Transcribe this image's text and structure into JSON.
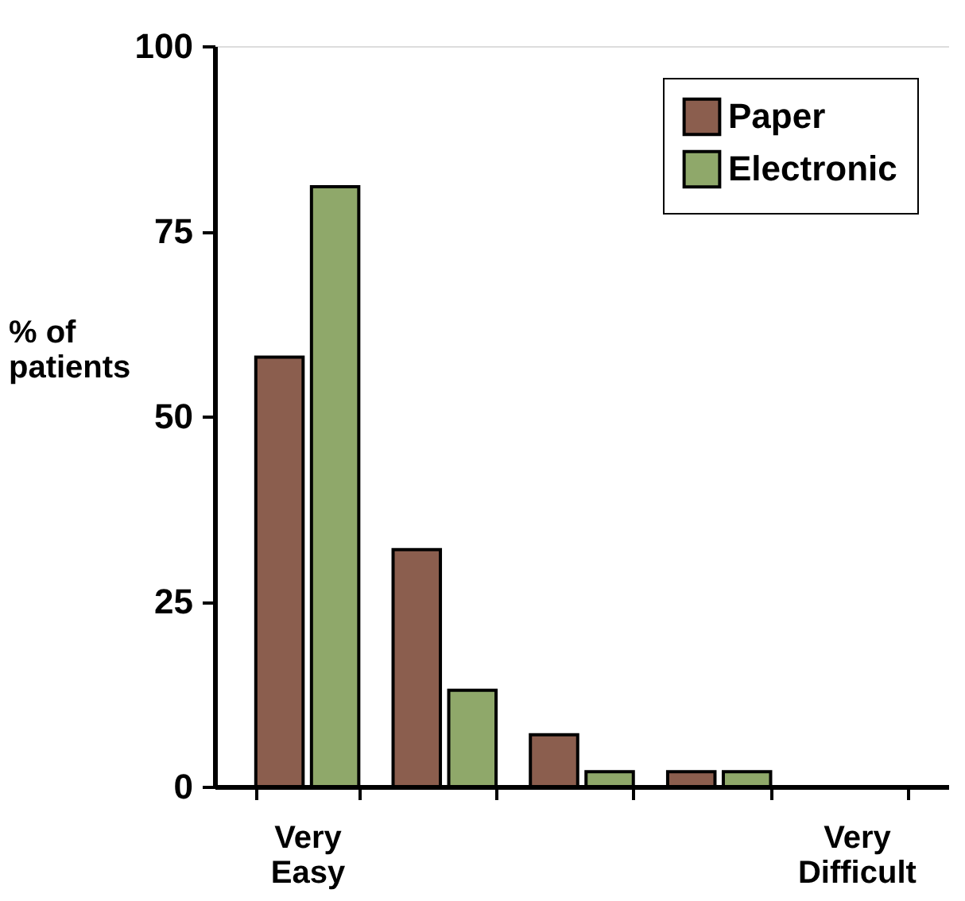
{
  "chart_data": {
    "type": "bar",
    "ylabel": "% of patients",
    "categories": [
      "Very Easy",
      null,
      null,
      null,
      "Very Difficult"
    ],
    "series": [
      {
        "name": "Paper",
        "color": "#8b5e4e",
        "values": [
          58,
          32,
          7,
          2,
          0
        ]
      },
      {
        "name": "Electronic",
        "color": "#8fa86a",
        "values": [
          81,
          13,
          2,
          2,
          0
        ]
      }
    ],
    "ylim": [
      0,
      100
    ],
    "yticks": [
      0,
      25,
      50,
      75,
      100
    ],
    "grid": false,
    "legend": "top right"
  }
}
